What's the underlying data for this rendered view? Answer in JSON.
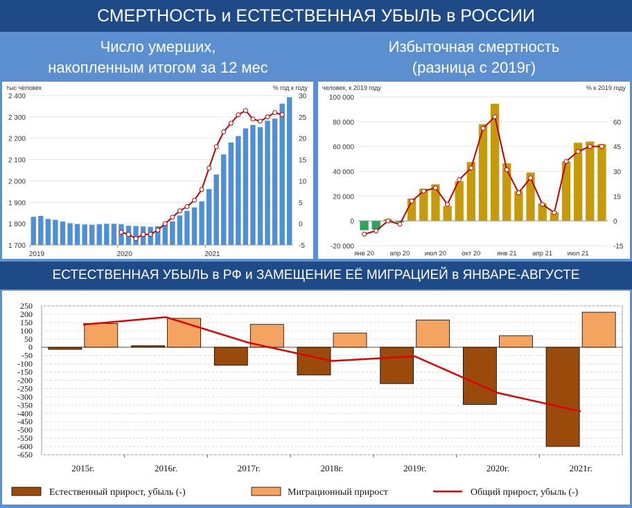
{
  "header": {
    "title": "СМЕРТНОСТЬ и ЕСТЕСТВЕННАЯ УБЫЛЬ в РОССИИ",
    "left_title": [
      "Число умерших,",
      "накопленным итогом за 12 мес"
    ],
    "right_title": [
      "Избыточная смертность",
      "(разница с 2019г)"
    ],
    "bottom_title": "ЕСТЕСТВЕННАЯ УБЫЛЬ в РФ и ЗАМЕЩЕНИЕ ЕЁ МИГРАЦИЕЙ в ЯНВАРЕ-АВГУСТЕ"
  },
  "colors": {
    "bar_blue": "#4f8fd6",
    "bar_gold": "#c69a0b",
    "bar_green": "#2aa55a",
    "line_red": "#c00000",
    "bar_brown": "#9a4a0a",
    "bar_orange": "#f4a460"
  },
  "chart_data": [
    {
      "type": "bar",
      "left_unit": "тыс человек",
      "right_unit": "% год к году",
      "ylim": [
        1700,
        2400
      ],
      "y2lim": [
        -5,
        30
      ],
      "yticks": [
        "2 400",
        "2 300",
        "2 200",
        "2 100",
        "2 000",
        "1 900",
        "1 800",
        "1 700"
      ],
      "y2ticks": [
        "30",
        "25",
        "20",
        "15",
        "10",
        "5",
        "0",
        "-5"
      ],
      "x_labels": [
        "2019",
        "2020",
        "2021"
      ],
      "series": [
        {
          "values": [
            1832,
            1836,
            1822,
            1818,
            1810,
            1802,
            1798,
            1796,
            1795,
            1797,
            1799,
            1799,
            1797,
            1790,
            1789,
            1787,
            1785,
            1788,
            1796,
            1811,
            1838,
            1860,
            1876,
            1904,
            1962,
            2030,
            2124,
            2180,
            2210,
            2246,
            2262,
            2252,
            2282,
            2292,
            2362,
            2392
          ]
        },
        {
          "start_index": 12,
          "values": [
            -2,
            -2.5,
            -3.5,
            -2.5,
            -2.5,
            -1.5,
            0,
            1.5,
            3,
            4,
            5.5,
            8,
            13,
            18,
            21.5,
            23.5,
            25.5,
            26.5,
            24.5,
            24,
            25,
            26,
            25.5
          ]
        }
      ]
    },
    {
      "type": "bar",
      "left_unit": "человек, к 2019 году",
      "right_unit": "% к 2019 году",
      "ylim": [
        -20000,
        100000
      ],
      "y2lim": [
        -15,
        75
      ],
      "yticks": [
        "100 000",
        "80 000",
        "60 000",
        "40 000",
        "20 000",
        "0",
        "-20 000"
      ],
      "y2ticks": [
        "60",
        "45",
        "30",
        "15",
        "0",
        "-15"
      ],
      "x_labels": [
        "янв 20",
        "апр 20",
        "июл 20",
        "окт 20",
        "янв 21",
        "апр 21",
        "июл 21"
      ],
      "series": [
        {
          "values": [
            -7500,
            -7000,
            1500,
            -1000,
            18000,
            26000,
            29500,
            12000,
            32000,
            47500,
            78000,
            94500,
            46500,
            24000,
            39000,
            14000,
            7000,
            48000,
            63000,
            64000,
            62000
          ]
        },
        {
          "values": [
            -8,
            -6,
            0,
            -2,
            12,
            18,
            20,
            10,
            25,
            32,
            56,
            63,
            31,
            17,
            26,
            10,
            5,
            36,
            42,
            45,
            45
          ]
        }
      ]
    },
    {
      "type": "bar",
      "yticks": [
        "250",
        "200",
        "150",
        "100",
        "50",
        "0",
        "-50",
        "-100",
        "-150",
        "-200",
        "-250",
        "-300",
        "-350",
        "-400",
        "-450",
        "-500",
        "-550",
        "-600",
        "-650"
      ],
      "categories": [
        "2015г.",
        "2016г.",
        "2017г.",
        "2018г.",
        "2019г.",
        "2020г.",
        "2021г."
      ],
      "series": [
        {
          "name": "Естественный прирост, убыль (-)",
          "values": [
            -13,
            9,
            -109,
            -168,
            -220,
            -346,
            -600
          ]
        },
        {
          "name": "Миграционный прирост",
          "values": [
            144,
            175,
            138,
            86,
            165,
            70,
            212
          ]
        },
        {
          "name": "Общий прирост, убыль (-)",
          "values": [
            137,
            182,
            27,
            -83,
            -55,
            -276,
            -388
          ]
        }
      ]
    }
  ]
}
